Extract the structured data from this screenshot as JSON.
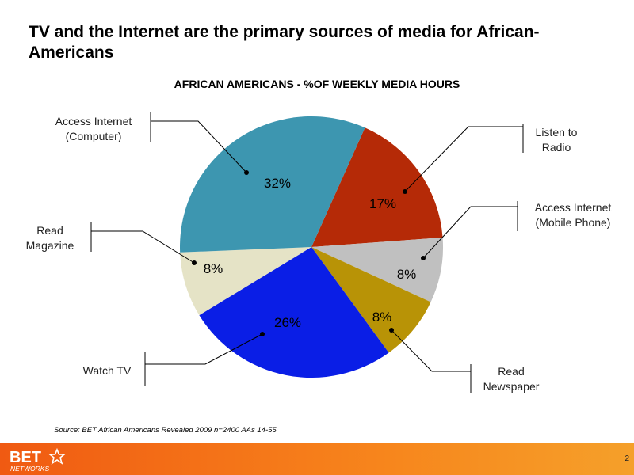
{
  "slide": {
    "title": "TV and the Internet are the primary sources of media for African-Americans",
    "source": "Source:  BET African Americans Revealed 2009 n=2400 AAs 14-55",
    "page_number": "2",
    "logo_text": "BET",
    "logo_subtext": "NETWORKS"
  },
  "colors": {
    "footer": "#f36b18"
  },
  "chart_data": {
    "type": "pie",
    "title": "AFRICAN AMERICANS - %OF WEEKLY MEDIA HOURS",
    "slices": [
      {
        "label": "Listen to Radio",
        "value": 17,
        "display": "17%",
        "color": "#b52a07"
      },
      {
        "label": "Access Internet (Mobile Phone)",
        "value": 8,
        "display": "8%",
        "color": "#c0c0c0"
      },
      {
        "label": "Read Newspaper",
        "value": 8,
        "display": "8%",
        "color": "#b89306"
      },
      {
        "label": "Watch TV",
        "value": 26,
        "display": "26%",
        "color": "#0a1ee6"
      },
      {
        "label": "Read Magazine",
        "value": 8,
        "display": "8%",
        "color": "#e5e3c6"
      },
      {
        "label": "Access Internet (Computer)",
        "value": 32,
        "display": "32%",
        "color": "#3d96b0"
      }
    ]
  }
}
